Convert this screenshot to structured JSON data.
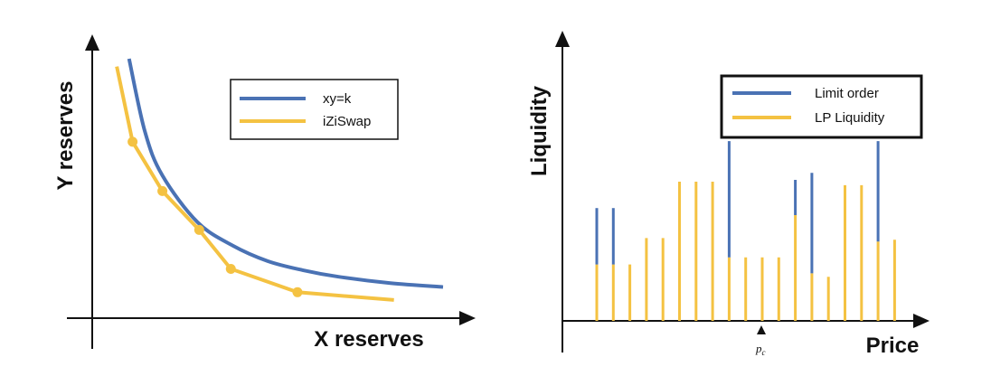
{
  "colors": {
    "blue": "#4A72B4",
    "yellow": "#F4C242",
    "axis": "#111111"
  },
  "chart_data": [
    {
      "type": "line",
      "xlabel": "X reserves",
      "ylabel": "Y reserves",
      "legend": {
        "placement": "top-right",
        "entries": [
          "xy=k",
          "iZiSwap"
        ]
      },
      "grid": false,
      "series": [
        {
          "name": "xy=k",
          "color": "#4A72B4",
          "style": "smooth-curve",
          "points": [
            [
              0.105,
              1.0
            ],
            [
              0.15,
              0.72
            ],
            [
              0.2,
              0.55
            ],
            [
              0.3,
              0.37
            ],
            [
              0.4,
              0.28
            ],
            [
              0.5,
              0.22
            ],
            [
              0.6,
              0.185
            ],
            [
              0.7,
              0.16
            ],
            [
              0.85,
              0.135
            ],
            [
              1.0,
              0.12
            ]
          ]
        },
        {
          "name": "iZiSwap",
          "color": "#F4C242",
          "style": "piecewise-linear",
          "points": [
            [
              0.07,
              0.97
            ],
            [
              0.115,
              0.68
            ],
            [
              0.2,
              0.49
            ],
            [
              0.305,
              0.34
            ],
            [
              0.395,
              0.19
            ],
            [
              0.585,
              0.1
            ],
            [
              0.86,
              0.07
            ]
          ],
          "marked_points": [
            [
              0.115,
              0.68
            ],
            [
              0.2,
              0.49
            ],
            [
              0.305,
              0.34
            ],
            [
              0.395,
              0.19
            ],
            [
              0.585,
              0.1
            ]
          ]
        }
      ]
    },
    {
      "type": "bar",
      "xlabel": "Price",
      "ylabel": "Liquidity",
      "annotation": "p_c",
      "legend": {
        "placement": "top-right",
        "entries": [
          "Limit order",
          "LP Liquidity"
        ]
      },
      "grid": false,
      "series": [
        {
          "name": "LP Liquidity",
          "color": "#F4C242",
          "values": [
            0.16,
            0.16,
            0.16,
            0.235,
            0.235,
            0.395,
            0.395,
            0.395,
            0.18,
            0.18,
            0.18,
            0.18,
            0.3,
            0.135,
            0.125,
            0.385,
            0.385,
            0.225,
            0.23
          ]
        },
        {
          "name": "Limit order",
          "color": "#4A72B4",
          "values": [
            0.16,
            0.16,
            0,
            0,
            0,
            0,
            0,
            0,
            0.33,
            0,
            0,
            0,
            0.1,
            0.285,
            0,
            0,
            0,
            0.285,
            0
          ]
        }
      ]
    }
  ]
}
